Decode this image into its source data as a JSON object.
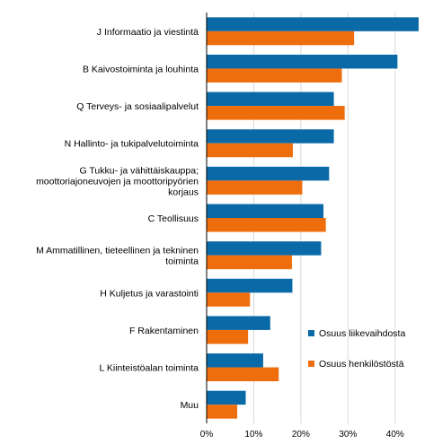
{
  "chart_data": {
    "type": "bar",
    "orientation": "horizontal",
    "categories": [
      "J Informaatio ja viestintä",
      "B  Kaivostoiminta ja louhinta",
      "Q  Terveys- ja sosiaalipalvelut",
      "N  Hallinto- ja tukipalvelutoiminta",
      "G  Tukku- ja vähittäiskauppa;\nmoottoriajoneuvojen ja moottoripyörien\nkorjaus",
      "C  Teollisuus",
      "M  Ammatillinen, tieteellinen ja tekninen\ntoiminta",
      "H  Kuljetus ja varastointi",
      "F  Rakentaminen",
      "L  Kiinteistöalan toiminta",
      "Muu"
    ],
    "series": [
      {
        "name": "Osuus liikevaihdosta",
        "color": "#0a6aa7",
        "values": [
          45,
          40.5,
          27,
          27,
          26,
          24.8,
          24.3,
          18.2,
          13.5,
          12,
          8.3
        ]
      },
      {
        "name": "Osuus henkilöstöstä",
        "color": "#ee6e0e",
        "values": [
          31.3,
          28.7,
          29.3,
          18.3,
          20.3,
          25.3,
          18.1,
          9.2,
          8.8,
          15.3,
          6.5
        ]
      }
    ],
    "x_ticks": [
      "0%",
      "10%",
      "20%",
      "30%",
      "40%"
    ],
    "x_tick_values": [
      0,
      10,
      20,
      30,
      40
    ],
    "xlim": [
      0,
      45
    ],
    "grid": "vertical",
    "legend_placement": "right"
  }
}
